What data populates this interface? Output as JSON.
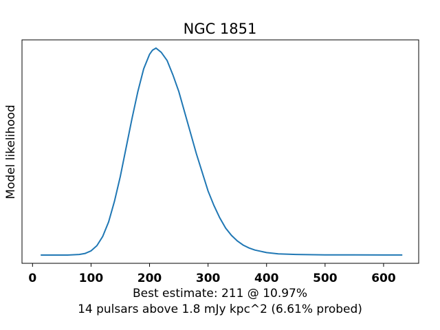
{
  "chart_data": {
    "type": "line",
    "title": "NGC 1851",
    "ylabel": "Model likelihood",
    "xlabel_lines": [
      "Best estimate: 211 @ 10.97%",
      "14 pulsars above 1.8 mJy kpc^2 (6.61% probed)"
    ],
    "xlim": [
      -18,
      660
    ],
    "ylim": [
      -0.04,
      1.04
    ],
    "xticks": [
      0,
      100,
      200,
      300,
      400,
      500,
      600
    ],
    "xtick_labels": [
      "0",
      "100",
      "200",
      "300",
      "400",
      "500",
      "600"
    ],
    "yticks_visible": false,
    "grid": false,
    "color": "#1f77b4",
    "series": [
      {
        "x": [
          14,
          60,
          80,
          90,
          100,
          110,
          120,
          130,
          140,
          150,
          160,
          170,
          180,
          190,
          200,
          205,
          211,
          220,
          230,
          240,
          250,
          260,
          270,
          280,
          290,
          300,
          310,
          320,
          330,
          340,
          350,
          360,
          370,
          380,
          400,
          420,
          450,
          500,
          550,
          600,
          632
        ],
        "y": [
          0.0,
          0.0,
          0.003,
          0.008,
          0.02,
          0.045,
          0.09,
          0.16,
          0.26,
          0.38,
          0.52,
          0.66,
          0.79,
          0.9,
          0.97,
          0.99,
          1.0,
          0.98,
          0.94,
          0.87,
          0.79,
          0.69,
          0.59,
          0.49,
          0.4,
          0.31,
          0.24,
          0.18,
          0.13,
          0.095,
          0.068,
          0.048,
          0.034,
          0.024,
          0.012,
          0.006,
          0.003,
          0.001,
          0.0005,
          0.0002,
          0.0001
        ]
      }
    ]
  }
}
